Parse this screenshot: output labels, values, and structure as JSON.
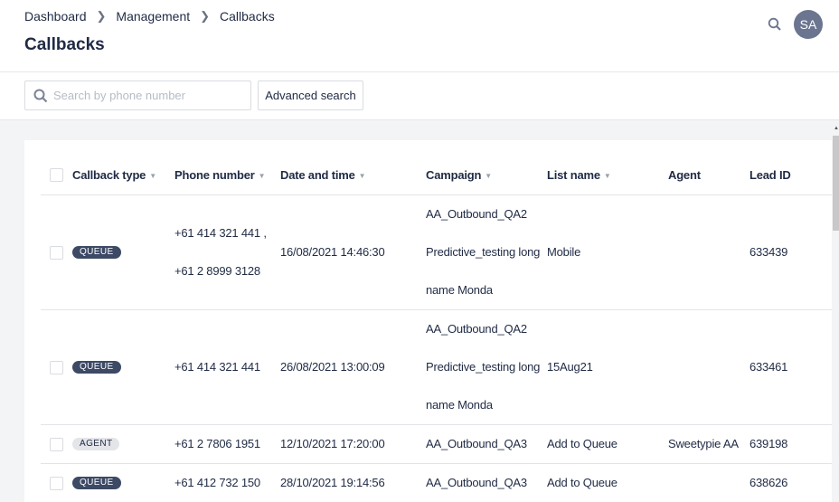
{
  "breadcrumb": [
    "Dashboard",
    "Management",
    "Callbacks"
  ],
  "page_title": "Callbacks",
  "user": {
    "initials": "SA"
  },
  "search": {
    "placeholder": "Search by phone number",
    "value": ""
  },
  "advanced_search_label": "Advanced search",
  "colors": {
    "queue_badge": "#3d4a66",
    "agent_badge": "#e3e5e9",
    "text": "#1f2a44"
  },
  "table": {
    "columns": [
      "Callback type",
      "Phone number",
      "Date and time",
      "Campaign",
      "List name",
      "Agent",
      "Lead ID"
    ],
    "rows": [
      {
        "type": "QUEUE",
        "phones": [
          "+61 414 321 441 ,",
          "+61 2 8999 3128"
        ],
        "datetime": "16/08/2021 14:46:30",
        "campaign": [
          "AA_Outbound_QA2",
          "Predictive_testing long",
          "name Monda"
        ],
        "list": "Mobile",
        "agent": "",
        "lead_id": "633439"
      },
      {
        "type": "QUEUE",
        "phones": [
          "+61 414 321 441"
        ],
        "datetime": "26/08/2021 13:00:09",
        "campaign": [
          "AA_Outbound_QA2",
          "Predictive_testing long",
          "name Monda"
        ],
        "list": "15Aug21",
        "agent": "",
        "lead_id": "633461"
      },
      {
        "type": "AGENT",
        "phones": [
          "+61 2 7806 1951"
        ],
        "datetime": "12/10/2021 17:20:00",
        "campaign": [
          "AA_Outbound_QA3"
        ],
        "list": "Add to Queue",
        "agent": "Sweetypie AA",
        "lead_id": "639198"
      },
      {
        "type": "QUEUE",
        "phones": [
          "+61 412 732 150"
        ],
        "datetime": "28/10/2021 19:14:56",
        "campaign": [
          "AA_Outbound_QA3"
        ],
        "list": "Add to Queue",
        "agent": "",
        "lead_id": "638626"
      }
    ]
  }
}
